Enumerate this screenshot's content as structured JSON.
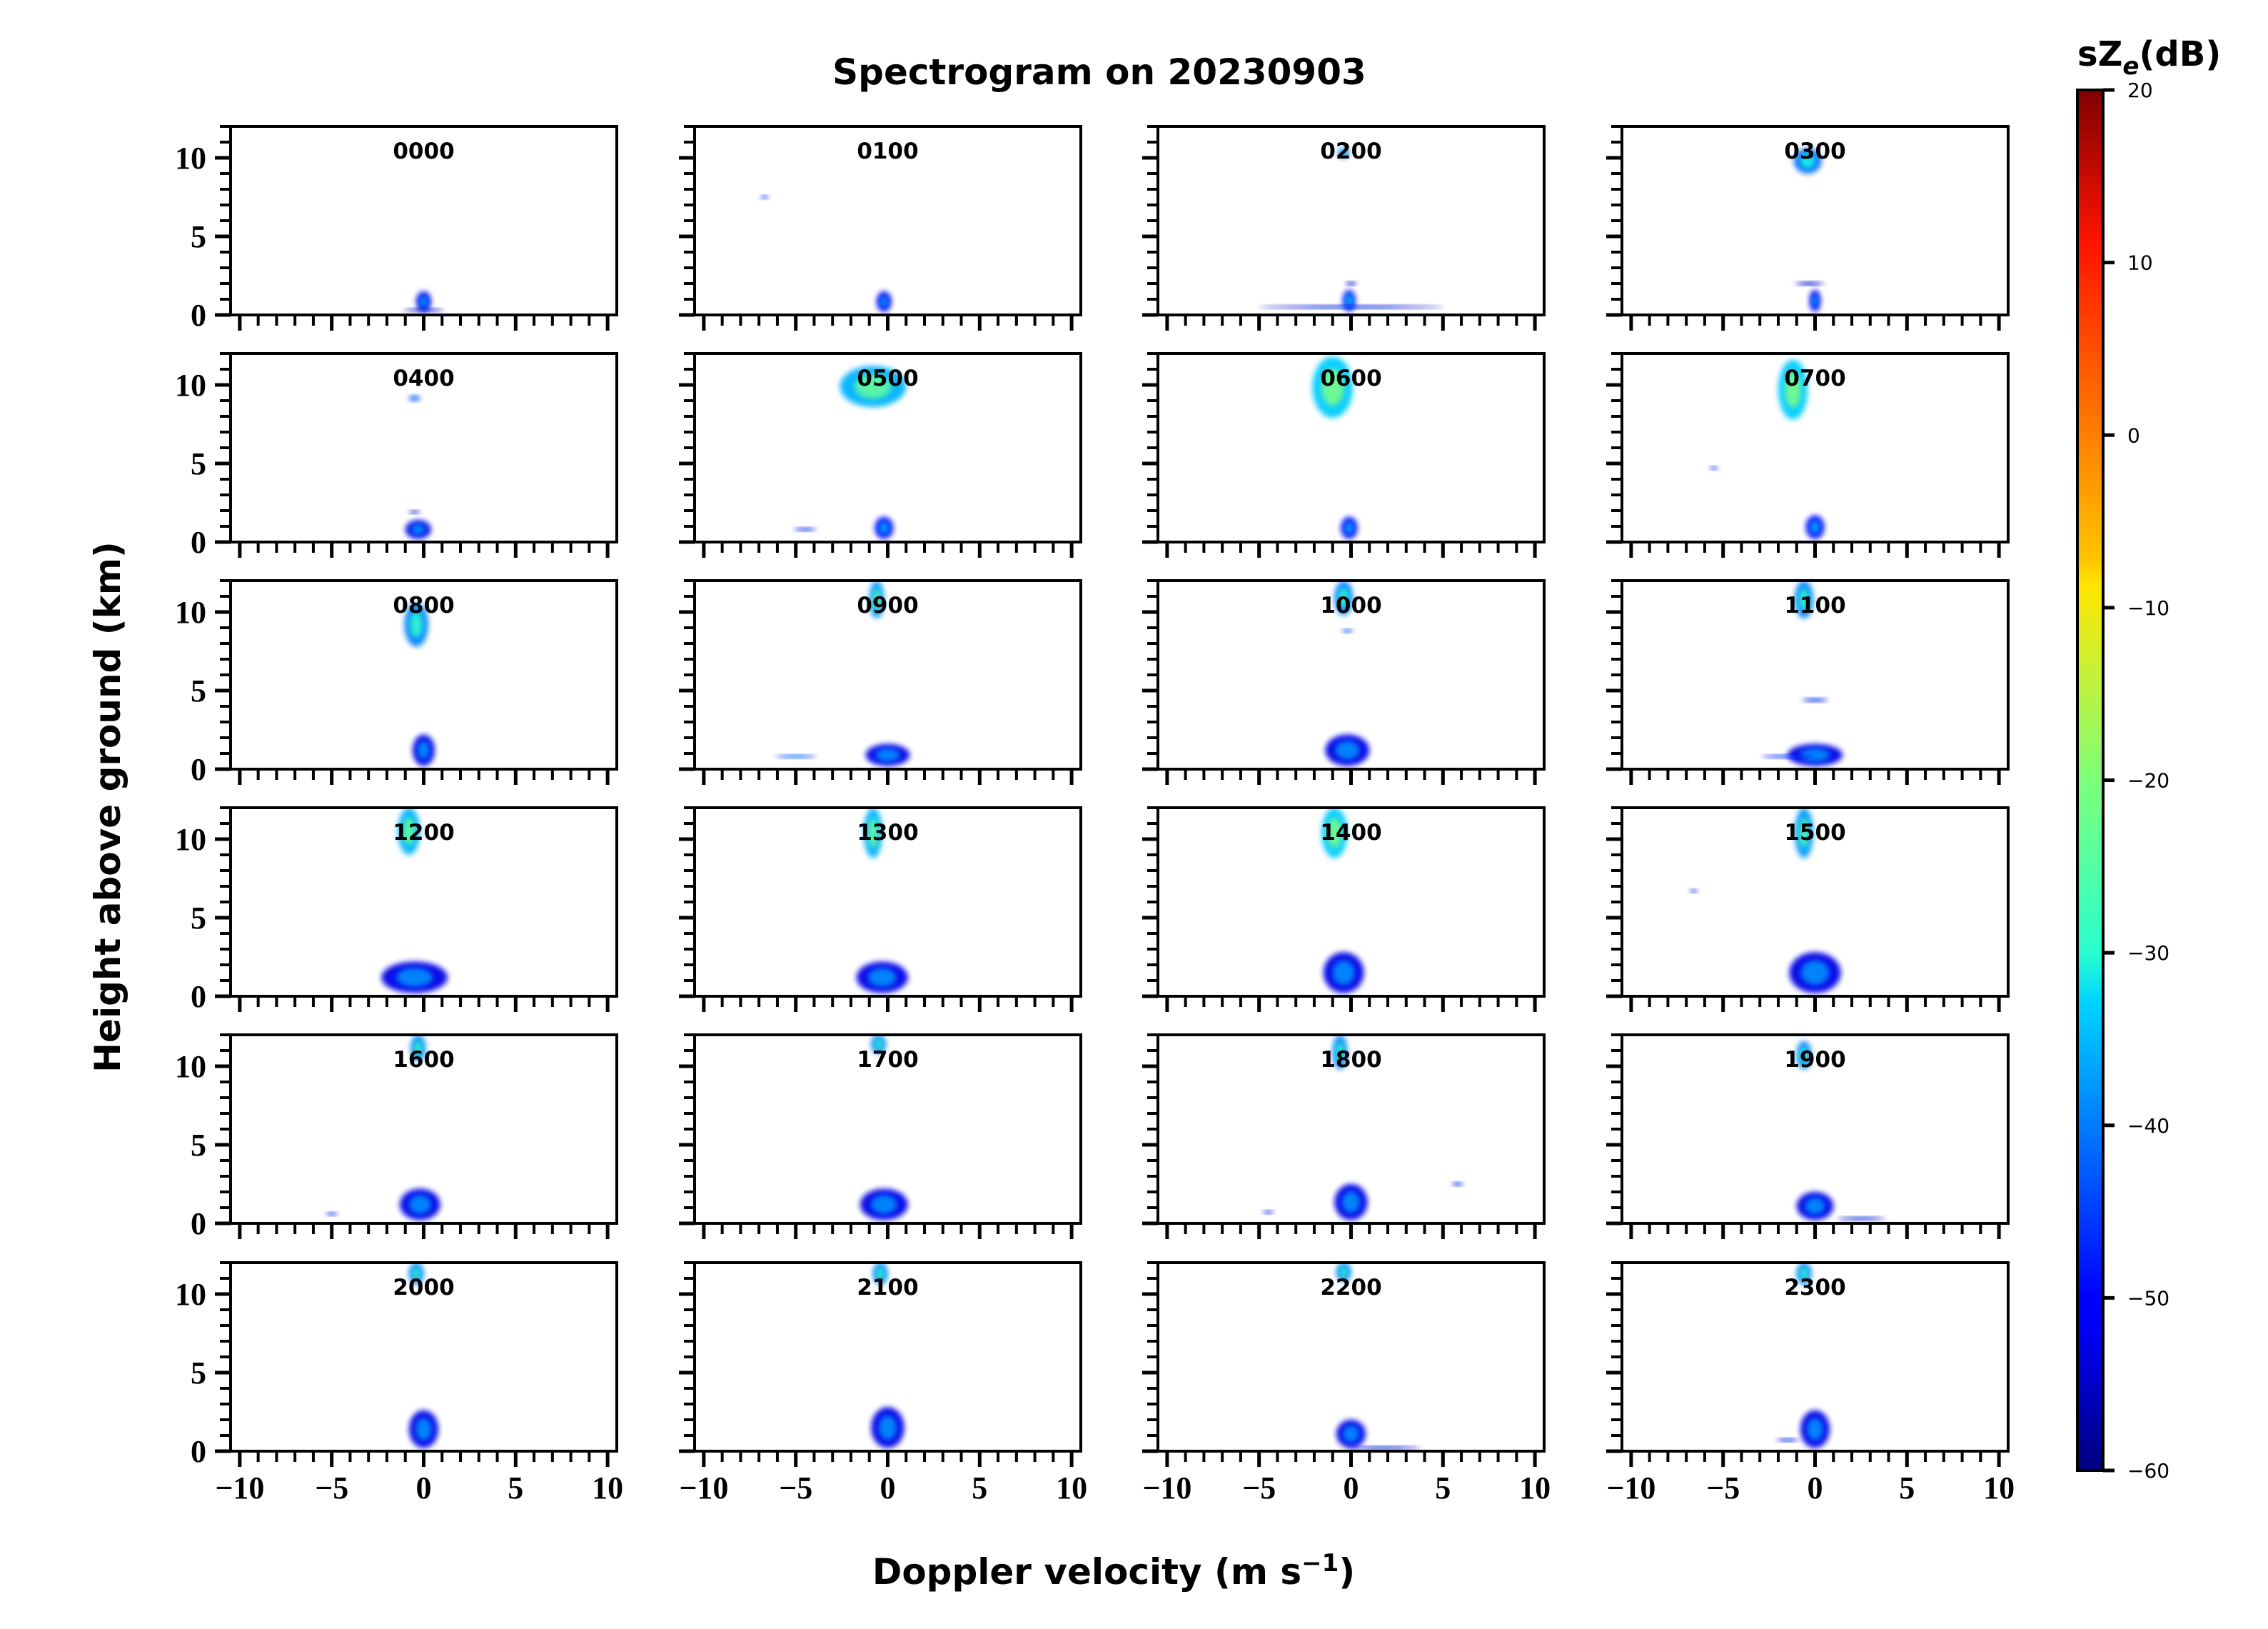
{
  "chart_data": {
    "type": "heatmap",
    "title": "Spectrogram on 20230903",
    "xlabel": "Doppler velocity (m s",
    "xlabel_sup": "−1",
    "xlabel_close": ")",
    "ylabel": "Height above ground (km)",
    "xlim": [
      -10.5,
      10.5
    ],
    "ylim": [
      0,
      12
    ],
    "xticks": [
      -10,
      -5,
      0,
      5,
      10
    ],
    "xtick_labels": [
      "−10",
      "−5",
      "0",
      "5",
      "10"
    ],
    "yticks": [
      0,
      5,
      10
    ],
    "ytick_labels": [
      "0",
      "5",
      "10"
    ],
    "colorbar": {
      "title_main": "sZ",
      "title_sub": "e",
      "title_unit": "(dB)",
      "range": [
        -60,
        20
      ],
      "ticks": [
        20,
        10,
        0,
        -10,
        -20,
        -30,
        -40,
        -50,
        -60
      ],
      "tick_labels": [
        "20",
        "10",
        "0",
        "−10",
        "−20",
        "−30",
        "−40",
        "−50",
        "−60"
      ],
      "colormap": "jet"
    },
    "panels": [
      {
        "label": "0000",
        "blobs": [
          {
            "v": 0,
            "h0": 0.2,
            "h1": 1.5,
            "w": 0.8,
            "dbz": -45
          },
          {
            "v": 0,
            "h0": 0.3,
            "h1": 0.4,
            "w": 2.2,
            "dbz": -50
          }
        ]
      },
      {
        "label": "0100",
        "blobs": [
          {
            "v": -0.2,
            "h0": 0.2,
            "h1": 1.5,
            "w": 0.8,
            "dbz": -45
          },
          {
            "v": -6.7,
            "h0": 7.4,
            "h1": 7.6,
            "w": 0.4,
            "dbz": -45
          }
        ]
      },
      {
        "label": "0200",
        "blobs": [
          {
            "v": -0.1,
            "h0": 0.2,
            "h1": 1.6,
            "w": 0.7,
            "dbz": -42
          },
          {
            "v": 0,
            "h0": 0.5,
            "h1": 0.6,
            "w": 10,
            "dbz": -48
          },
          {
            "v": -0.4,
            "h0": 10.0,
            "h1": 10.6,
            "w": 0.6,
            "dbz": -35
          },
          {
            "v": 0,
            "h0": 1.9,
            "h1": 2.1,
            "w": 0.6,
            "dbz": -50
          }
        ]
      },
      {
        "label": "0300",
        "blobs": [
          {
            "v": -0.4,
            "h0": 9.0,
            "h1": 10.6,
            "w": 1.5,
            "dbz": -36
          },
          {
            "v": 0,
            "h0": 0.2,
            "h1": 1.6,
            "w": 0.6,
            "dbz": -45
          },
          {
            "v": -0.3,
            "h0": 1.9,
            "h1": 2.1,
            "w": 1.6,
            "dbz": -50
          }
        ]
      },
      {
        "label": "0400",
        "blobs": [
          {
            "v": -0.5,
            "h0": 9.0,
            "h1": 9.3,
            "w": 0.6,
            "dbz": -40
          },
          {
            "v": -0.3,
            "h0": 0.2,
            "h1": 1.4,
            "w": 1.4,
            "dbz": -46
          },
          {
            "v": -0.5,
            "h0": 1.9,
            "h1": 2.0,
            "w": 0.6,
            "dbz": -50
          }
        ]
      },
      {
        "label": "0500",
        "blobs": [
          {
            "v": -0.8,
            "h0": 8.6,
            "h1": 11.2,
            "w": 3.6,
            "dbz": -30
          },
          {
            "v": -0.2,
            "h0": 0.2,
            "h1": 1.6,
            "w": 1.0,
            "dbz": -44
          },
          {
            "v": -4.5,
            "h0": 0.8,
            "h1": 0.9,
            "w": 1.2,
            "dbz": -45
          }
        ]
      },
      {
        "label": "0600",
        "blobs": [
          {
            "v": -1.0,
            "h0": 7.9,
            "h1": 11.8,
            "w": 2.2,
            "dbz": -28
          },
          {
            "v": -0.1,
            "h0": 0.2,
            "h1": 1.6,
            "w": 0.9,
            "dbz": -44
          }
        ]
      },
      {
        "label": "0700",
        "blobs": [
          {
            "v": -1.2,
            "h0": 7.8,
            "h1": 11.6,
            "w": 1.6,
            "dbz": -28
          },
          {
            "v": 0,
            "h0": 0.2,
            "h1": 1.7,
            "w": 1.0,
            "dbz": -44
          },
          {
            "v": -5.5,
            "h0": 4.6,
            "h1": 4.8,
            "w": 0.4,
            "dbz": -45
          }
        ]
      },
      {
        "label": "0800",
        "blobs": [
          {
            "v": -0.4,
            "h0": 7.8,
            "h1": 10.6,
            "w": 1.3,
            "dbz": -34
          },
          {
            "v": 0,
            "h0": 0.2,
            "h1": 2.2,
            "w": 1.2,
            "dbz": -46
          }
        ]
      },
      {
        "label": "0900",
        "blobs": [
          {
            "v": -0.6,
            "h0": 9.6,
            "h1": 12,
            "w": 0.8,
            "dbz": -32
          },
          {
            "v": 0,
            "h0": 0.2,
            "h1": 1.6,
            "w": 2.4,
            "dbz": -46
          },
          {
            "v": -5.0,
            "h0": 0.8,
            "h1": 0.9,
            "w": 2.2,
            "dbz": -40
          }
        ]
      },
      {
        "label": "1000",
        "blobs": [
          {
            "v": -0.4,
            "h0": 9.8,
            "h1": 12,
            "w": 1.0,
            "dbz": -34
          },
          {
            "v": -0.2,
            "h0": 0.2,
            "h1": 2.2,
            "w": 2.4,
            "dbz": -46
          },
          {
            "v": -0.2,
            "h0": 8.7,
            "h1": 8.9,
            "w": 0.6,
            "dbz": -40
          }
        ]
      },
      {
        "label": "1100",
        "blobs": [
          {
            "v": -0.6,
            "h0": 9.6,
            "h1": 12,
            "w": 1.0,
            "dbz": -34
          },
          {
            "v": 0,
            "h0": 0.2,
            "h1": 1.6,
            "w": 3.0,
            "dbz": -46
          },
          {
            "v": -1.5,
            "h0": 0.8,
            "h1": 0.9,
            "w": 2.8,
            "dbz": -44
          },
          {
            "v": 0,
            "h0": 4.3,
            "h1": 4.5,
            "w": 1.4,
            "dbz": -45
          }
        ]
      },
      {
        "label": "1200",
        "blobs": [
          {
            "v": -0.8,
            "h0": 9.0,
            "h1": 12,
            "w": 1.2,
            "dbz": -30
          },
          {
            "v": -0.5,
            "h0": 0.2,
            "h1": 2.2,
            "w": 3.6,
            "dbz": -46
          }
        ]
      },
      {
        "label": "1300",
        "blobs": [
          {
            "v": -0.8,
            "h0": 8.8,
            "h1": 12,
            "w": 1.0,
            "dbz": -30
          },
          {
            "v": -0.3,
            "h0": 0.2,
            "h1": 2.2,
            "w": 2.8,
            "dbz": -46
          }
        ]
      },
      {
        "label": "1400",
        "blobs": [
          {
            "v": -0.9,
            "h0": 8.8,
            "h1": 12,
            "w": 1.4,
            "dbz": -28
          },
          {
            "v": -0.4,
            "h0": 0.2,
            "h1": 2.8,
            "w": 2.2,
            "dbz": -46
          }
        ]
      },
      {
        "label": "1500",
        "blobs": [
          {
            "v": -0.6,
            "h0": 8.8,
            "h1": 12,
            "w": 1.0,
            "dbz": -32
          },
          {
            "v": 0,
            "h0": 0.2,
            "h1": 2.8,
            "w": 2.8,
            "dbz": -46
          },
          {
            "v": -6.6,
            "h0": 6.6,
            "h1": 6.8,
            "w": 0.4,
            "dbz": -45
          }
        ]
      },
      {
        "label": "1600",
        "blobs": [
          {
            "v": -0.3,
            "h0": 10.3,
            "h1": 12,
            "w": 0.8,
            "dbz": -34
          },
          {
            "v": -0.2,
            "h0": 0.2,
            "h1": 2.2,
            "w": 2.2,
            "dbz": -46
          },
          {
            "v": -5.0,
            "h0": 0.6,
            "h1": 0.7,
            "w": 0.6,
            "dbz": -45
          }
        ]
      },
      {
        "label": "1700",
        "blobs": [
          {
            "v": -0.5,
            "h0": 10.8,
            "h1": 12,
            "w": 0.8,
            "dbz": -34
          },
          {
            "v": -0.2,
            "h0": 0.2,
            "h1": 2.2,
            "w": 2.6,
            "dbz": -46
          }
        ]
      },
      {
        "label": "1800",
        "blobs": [
          {
            "v": -0.6,
            "h0": 9.8,
            "h1": 12,
            "w": 0.8,
            "dbz": -34
          },
          {
            "v": 0,
            "h0": 0.2,
            "h1": 2.5,
            "w": 1.8,
            "dbz": -46
          },
          {
            "v": 5.8,
            "h0": 2.4,
            "h1": 2.6,
            "w": 0.6,
            "dbz": -45
          },
          {
            "v": -4.5,
            "h0": 0.7,
            "h1": 0.8,
            "w": 0.6,
            "dbz": -45
          }
        ]
      },
      {
        "label": "1900",
        "blobs": [
          {
            "v": -0.6,
            "h0": 9.8,
            "h1": 11.6,
            "w": 0.8,
            "dbz": -34
          },
          {
            "v": 0,
            "h0": 0.2,
            "h1": 2.0,
            "w": 2.0,
            "dbz": -46
          },
          {
            "v": 2.5,
            "h0": 0.3,
            "h1": 0.4,
            "w": 2.6,
            "dbz": -48
          }
        ]
      },
      {
        "label": "2000",
        "blobs": [
          {
            "v": -0.4,
            "h0": 10.6,
            "h1": 12,
            "w": 0.8,
            "dbz": -34
          },
          {
            "v": 0,
            "h0": 0.2,
            "h1": 2.6,
            "w": 1.6,
            "dbz": -46
          }
        ]
      },
      {
        "label": "2100",
        "blobs": [
          {
            "v": -0.4,
            "h0": 10.6,
            "h1": 12,
            "w": 0.8,
            "dbz": -34
          },
          {
            "v": 0,
            "h0": 0.2,
            "h1": 2.8,
            "w": 1.8,
            "dbz": -46
          }
        ]
      },
      {
        "label": "2200",
        "blobs": [
          {
            "v": -0.4,
            "h0": 10.8,
            "h1": 12,
            "w": 0.8,
            "dbz": -34
          },
          {
            "v": 0,
            "h0": 0.2,
            "h1": 2.0,
            "w": 1.6,
            "dbz": -46
          },
          {
            "v": 1.8,
            "h0": 0.2,
            "h1": 0.3,
            "w": 4.0,
            "dbz": -48
          }
        ]
      },
      {
        "label": "2300",
        "blobs": [
          {
            "v": -0.6,
            "h0": 10.6,
            "h1": 12,
            "w": 0.8,
            "dbz": -34
          },
          {
            "v": 0,
            "h0": 0.2,
            "h1": 2.6,
            "w": 1.6,
            "dbz": -46
          },
          {
            "v": -1.5,
            "h0": 0.7,
            "h1": 0.8,
            "w": 1.2,
            "dbz": -46
          }
        ]
      }
    ]
  }
}
